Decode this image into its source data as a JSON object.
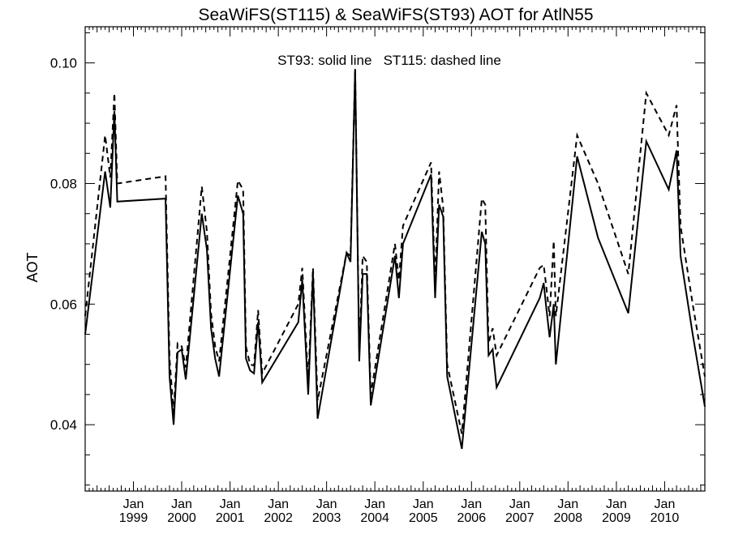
{
  "chart_data": {
    "type": "line",
    "title": "SeaWiFS(ST115) & SeaWiFS(ST93)  AOT for AtlN55",
    "ylabel": "AOT",
    "xlabel": "",
    "annotation": "ST93: solid line   ST115: dashed line",
    "ylim": [
      0.029,
      0.106
    ],
    "xlim": [
      "1998-01-01",
      "2010-11-01"
    ],
    "yticks": [
      {
        "value": 0.04,
        "label": "0.04"
      },
      {
        "value": 0.06,
        "label": "0.06"
      },
      {
        "value": 0.08,
        "label": "0.08"
      },
      {
        "value": 0.1,
        "label": "0.10"
      }
    ],
    "xticks": [
      {
        "date": "1999-01-01",
        "month": "Jan",
        "year": "1999"
      },
      {
        "date": "2000-01-01",
        "month": "Jan",
        "year": "2000"
      },
      {
        "date": "2001-01-01",
        "month": "Jan",
        "year": "2001"
      },
      {
        "date": "2002-01-01",
        "month": "Jan",
        "year": "2002"
      },
      {
        "date": "2003-01-01",
        "month": "Jan",
        "year": "2003"
      },
      {
        "date": "2004-01-01",
        "month": "Jan",
        "year": "2004"
      },
      {
        "date": "2005-01-01",
        "month": "Jan",
        "year": "2005"
      },
      {
        "date": "2006-01-01",
        "month": "Jan",
        "year": "2006"
      },
      {
        "date": "2007-01-01",
        "month": "Jan",
        "year": "2007"
      },
      {
        "date": "2008-01-01",
        "month": "Jan",
        "year": "2008"
      },
      {
        "date": "2009-01-01",
        "month": "Jan",
        "year": "2009"
      },
      {
        "date": "2010-01-01",
        "month": "Jan",
        "year": "2010"
      }
    ],
    "grid": false,
    "series": [
      {
        "name": "ST93",
        "style": "solid",
        "color": "#000000",
        "points": [
          [
            "1998-01-01",
            0.055
          ],
          [
            "1998-06-01",
            0.082
          ],
          [
            "1998-07-10",
            0.076
          ],
          [
            "1998-08-10",
            0.092
          ],
          [
            "1998-09-01",
            0.077
          ],
          [
            "1999-09-01",
            0.0775
          ],
          [
            "1999-10-01",
            0.048
          ],
          [
            "1999-11-01",
            0.04
          ],
          [
            "1999-12-01",
            0.052
          ],
          [
            "2000-01-01",
            0.0525
          ],
          [
            "2000-02-01",
            0.0475
          ],
          [
            "2000-06-01",
            0.075
          ],
          [
            "2000-07-10",
            0.069
          ],
          [
            "2000-08-10",
            0.056
          ],
          [
            "2000-09-10",
            0.051
          ],
          [
            "2000-10-10",
            0.048
          ],
          [
            "2001-03-01",
            0.078
          ],
          [
            "2001-04-10",
            0.075
          ],
          [
            "2001-05-01",
            0.051
          ],
          [
            "2001-06-01",
            0.049
          ],
          [
            "2001-07-01",
            0.0485
          ],
          [
            "2001-08-01",
            0.057
          ],
          [
            "2001-09-01",
            0.047
          ],
          [
            "2002-06-01",
            0.057
          ],
          [
            "2002-07-01",
            0.064
          ],
          [
            "2002-08-15",
            0.045
          ],
          [
            "2002-09-20",
            0.065
          ],
          [
            "2002-10-25",
            0.041
          ],
          [
            "2003-06-01",
            0.0685
          ],
          [
            "2003-07-01",
            0.067
          ],
          [
            "2003-08-05",
            0.099
          ],
          [
            "2003-09-05",
            0.0505
          ],
          [
            "2003-10-01",
            0.065
          ],
          [
            "2003-11-01",
            0.065
          ],
          [
            "2003-12-01",
            0.0432
          ],
          [
            "2004-06-01",
            0.068
          ],
          [
            "2004-07-01",
            0.061
          ],
          [
            "2004-08-01",
            0.07
          ],
          [
            "2005-03-01",
            0.0815
          ],
          [
            "2005-04-01",
            0.061
          ],
          [
            "2005-05-01",
            0.0765
          ],
          [
            "2005-06-01",
            0.0745
          ],
          [
            "2005-07-01",
            0.048
          ],
          [
            "2005-10-20",
            0.036
          ],
          [
            "2006-03-20",
            0.072
          ],
          [
            "2006-04-15",
            0.07
          ],
          [
            "2006-05-10",
            0.0515
          ],
          [
            "2006-06-10",
            0.0525
          ],
          [
            "2006-07-10",
            0.0462
          ],
          [
            "2007-06-01",
            0.061
          ],
          [
            "2007-07-01",
            0.0635
          ],
          [
            "2007-07-20",
            0.0595
          ],
          [
            "2007-08-15",
            0.0545
          ],
          [
            "2007-09-15",
            0.06
          ],
          [
            "2007-10-01",
            0.05
          ],
          [
            "2008-03-10",
            0.0845
          ],
          [
            "2008-08-15",
            0.071
          ],
          [
            "2009-04-01",
            0.0585
          ],
          [
            "2009-08-15",
            0.087
          ],
          [
            "2010-02-01",
            0.079
          ],
          [
            "2010-04-01",
            0.0855
          ],
          [
            "2010-05-01",
            0.068
          ],
          [
            "2010-08-01",
            0.055
          ],
          [
            "2010-11-01",
            0.043
          ]
        ]
      },
      {
        "name": "ST115",
        "style": "dashed",
        "color": "#000000",
        "points": [
          [
            "1998-01-01",
            0.058
          ],
          [
            "1998-06-01",
            0.088
          ],
          [
            "1998-07-10",
            0.081
          ],
          [
            "1998-08-10",
            0.095
          ],
          [
            "1998-09-01",
            0.08
          ],
          [
            "1999-09-01",
            0.0812
          ],
          [
            "1999-10-01",
            0.051
          ],
          [
            "1999-11-01",
            0.042
          ],
          [
            "1999-12-01",
            0.0535
          ],
          [
            "2000-01-01",
            0.053
          ],
          [
            "2000-02-01",
            0.0495
          ],
          [
            "2000-06-01",
            0.0795
          ],
          [
            "2000-07-10",
            0.072
          ],
          [
            "2000-08-10",
            0.0585
          ],
          [
            "2000-09-10",
            0.053
          ],
          [
            "2000-10-10",
            0.0505
          ],
          [
            "2001-03-01",
            0.0805
          ],
          [
            "2001-04-10",
            0.079
          ],
          [
            "2001-05-01",
            0.053
          ],
          [
            "2001-06-01",
            0.05
          ],
          [
            "2001-07-01",
            0.0498
          ],
          [
            "2001-08-01",
            0.059
          ],
          [
            "2001-09-01",
            0.0485
          ],
          [
            "2002-06-01",
            0.06
          ],
          [
            "2002-07-01",
            0.066
          ],
          [
            "2002-08-15",
            0.047
          ],
          [
            "2002-09-20",
            0.066
          ],
          [
            "2002-10-25",
            0.044
          ],
          [
            "2003-06-01",
            0.0685
          ],
          [
            "2003-07-01",
            0.068
          ],
          [
            "2003-08-05",
            0.099
          ],
          [
            "2003-09-05",
            0.052
          ],
          [
            "2003-10-01",
            0.068
          ],
          [
            "2003-11-01",
            0.067
          ],
          [
            "2003-12-01",
            0.045
          ],
          [
            "2004-06-01",
            0.07
          ],
          [
            "2004-07-01",
            0.064
          ],
          [
            "2004-08-01",
            0.073
          ],
          [
            "2005-03-01",
            0.0835
          ],
          [
            "2005-04-01",
            0.0635
          ],
          [
            "2005-05-01",
            0.082
          ],
          [
            "2005-06-01",
            0.076
          ],
          [
            "2005-07-01",
            0.05
          ],
          [
            "2005-10-20",
            0.0385
          ],
          [
            "2006-03-20",
            0.0775
          ],
          [
            "2006-04-15",
            0.0765
          ],
          [
            "2006-05-10",
            0.0535
          ],
          [
            "2006-06-10",
            0.056
          ],
          [
            "2006-07-10",
            0.0515
          ],
          [
            "2007-06-01",
            0.066
          ],
          [
            "2007-07-01",
            0.0665
          ],
          [
            "2007-07-20",
            0.063
          ],
          [
            "2007-08-15",
            0.058
          ],
          [
            "2007-09-15",
            0.0705
          ],
          [
            "2007-10-01",
            0.058
          ],
          [
            "2008-03-10",
            0.088
          ],
          [
            "2008-08-15",
            0.08
          ],
          [
            "2009-04-01",
            0.065
          ],
          [
            "2009-08-15",
            0.095
          ],
          [
            "2010-02-01",
            0.088
          ],
          [
            "2010-04-01",
            0.093
          ],
          [
            "2010-05-01",
            0.073
          ],
          [
            "2010-08-01",
            0.06
          ],
          [
            "2010-11-01",
            0.048
          ]
        ]
      }
    ]
  }
}
